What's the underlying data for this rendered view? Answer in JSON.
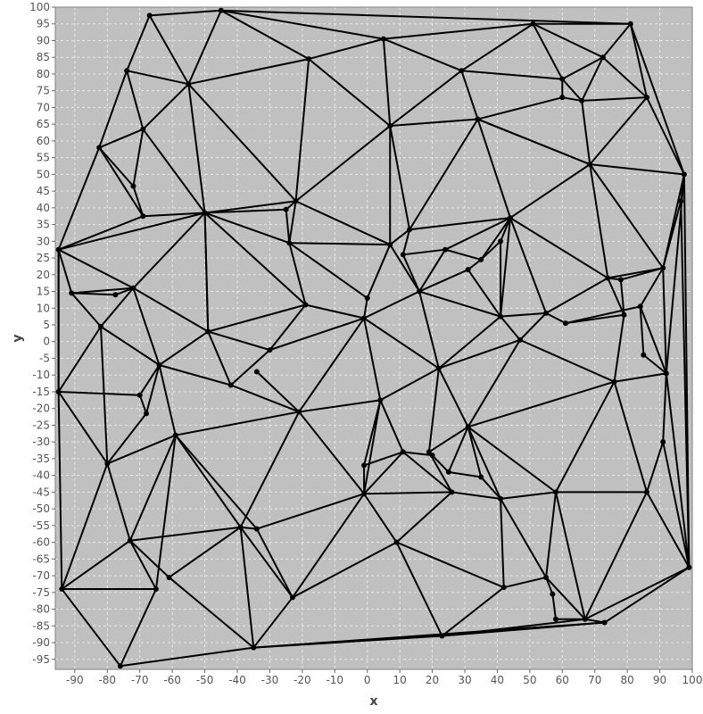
{
  "chart_data": {
    "type": "network",
    "xlabel": "x",
    "ylabel": "y",
    "xlim": [
      -96,
      100
    ],
    "ylim": [
      -98,
      100
    ],
    "x_ticks": [
      -90,
      -80,
      -70,
      -60,
      -50,
      -40,
      -30,
      -20,
      -10,
      0,
      10,
      20,
      30,
      40,
      50,
      60,
      70,
      80,
      90,
      100
    ],
    "y_ticks": [
      100,
      95,
      90,
      85,
      80,
      75,
      70,
      65,
      60,
      55,
      50,
      45,
      40,
      35,
      30,
      25,
      20,
      15,
      10,
      5,
      0,
      -5,
      -10,
      -15,
      -20,
      -25,
      -30,
      -35,
      -40,
      -45,
      -50,
      -55,
      -60,
      -65,
      -70,
      -75,
      -80,
      -85,
      -90,
      -95
    ],
    "grid": true,
    "colors": {
      "plot_background": "#c0c0c0",
      "gridline": "#e8e8e8",
      "edge": "#000000",
      "node": "#000000"
    },
    "nodes": [
      [
        -67,
        97.5
      ],
      [
        -45,
        99
      ],
      [
        5,
        90.5
      ],
      [
        51,
        95
      ],
      [
        81,
        95
      ],
      [
        -74,
        81
      ],
      [
        -55,
        77
      ],
      [
        -18,
        84.5
      ],
      [
        29,
        81
      ],
      [
        72.5,
        85
      ],
      [
        60,
        78.5
      ],
      [
        60,
        73
      ],
      [
        66,
        72
      ],
      [
        86,
        73
      ],
      [
        -69,
        63.5
      ],
      [
        -82.5,
        58
      ],
      [
        7,
        64.5
      ],
      [
        34,
        66.5
      ],
      [
        -72,
        46.5
      ],
      [
        68.5,
        53
      ],
      [
        97.5,
        50
      ],
      [
        -69,
        37.5
      ],
      [
        -50,
        38.5
      ],
      [
        -22,
        42
      ],
      [
        -25,
        39.5
      ],
      [
        44,
        37
      ],
      [
        96.5,
        42
      ],
      [
        -95,
        27.5
      ],
      [
        -24,
        29.5
      ],
      [
        7,
        29
      ],
      [
        13,
        33.5
      ],
      [
        11,
        26
      ],
      [
        24,
        27.5
      ],
      [
        41,
        30
      ],
      [
        35,
        24.5
      ],
      [
        31,
        21.5
      ],
      [
        91,
        22
      ],
      [
        74,
        19
      ],
      [
        78,
        18.5
      ],
      [
        -91,
        14.5
      ],
      [
        -72,
        16
      ],
      [
        -77.5,
        14
      ],
      [
        16,
        15
      ],
      [
        -19,
        11
      ],
      [
        0,
        13
      ],
      [
        -82,
        4.5
      ],
      [
        -49,
        3
      ],
      [
        -1,
        7
      ],
      [
        41,
        7.5
      ],
      [
        55,
        8.5
      ],
      [
        84,
        10.5
      ],
      [
        61,
        5.5
      ],
      [
        79,
        8
      ],
      [
        47,
        0.5
      ],
      [
        -30,
        -2.5
      ],
      [
        85,
        -4
      ],
      [
        -34,
        -9
      ],
      [
        -64,
        -7
      ],
      [
        22,
        -8
      ],
      [
        92,
        -9.5
      ],
      [
        -42,
        -13
      ],
      [
        -95,
        -15
      ],
      [
        -70,
        -16
      ],
      [
        76,
        -12
      ],
      [
        4,
        -17.5
      ],
      [
        -21,
        -21
      ],
      [
        -68,
        -21.5
      ],
      [
        -59,
        -28
      ],
      [
        31,
        -25.5
      ],
      [
        91,
        -30
      ],
      [
        -80,
        -36.5
      ],
      [
        11,
        -33
      ],
      [
        19,
        -33
      ],
      [
        20,
        -34
      ],
      [
        -1,
        -37
      ],
      [
        25,
        -39
      ],
      [
        35,
        -40.5
      ],
      [
        -1,
        -45.5
      ],
      [
        26,
        -45
      ],
      [
        58,
        -45
      ],
      [
        86,
        -45
      ],
      [
        41,
        -47
      ],
      [
        -39,
        -55.5
      ],
      [
        -34,
        -56
      ],
      [
        -73,
        -59.5
      ],
      [
        9,
        -60
      ],
      [
        99,
        -67.5
      ],
      [
        -61,
        -70.5
      ],
      [
        -94,
        -74
      ],
      [
        -65,
        -74
      ],
      [
        42,
        -73.5
      ],
      [
        55,
        -70.5
      ],
      [
        -23,
        -76.5
      ],
      [
        57,
        -75.5
      ],
      [
        58,
        -83
      ],
      [
        67,
        -83
      ],
      [
        73,
        -84
      ],
      [
        -35,
        -91.5
      ],
      [
        23,
        -88
      ],
      [
        -76,
        -97
      ]
    ],
    "edges": [
      [
        0,
        1
      ],
      [
        1,
        4
      ],
      [
        4,
        3
      ],
      [
        3,
        2
      ],
      [
        1,
        2
      ],
      [
        2,
        7
      ],
      [
        1,
        7
      ],
      [
        1,
        6
      ],
      [
        0,
        6
      ],
      [
        0,
        5
      ],
      [
        5,
        6
      ],
      [
        6,
        7
      ],
      [
        7,
        16
      ],
      [
        2,
        16
      ],
      [
        2,
        8
      ],
      [
        3,
        8
      ],
      [
        8,
        16
      ],
      [
        8,
        17
      ],
      [
        16,
        17
      ],
      [
        8,
        10
      ],
      [
        3,
        10
      ],
      [
        3,
        9
      ],
      [
        9,
        4
      ],
      [
        9,
        10
      ],
      [
        9,
        12
      ],
      [
        10,
        12
      ],
      [
        10,
        11
      ],
      [
        11,
        12
      ],
      [
        12,
        13
      ],
      [
        9,
        13
      ],
      [
        4,
        13
      ],
      [
        4,
        20
      ],
      [
        13,
        19
      ],
      [
        13,
        20
      ],
      [
        12,
        19
      ],
      [
        11,
        17
      ],
      [
        17,
        19
      ],
      [
        19,
        20
      ],
      [
        5,
        15
      ],
      [
        5,
        14
      ],
      [
        6,
        14
      ],
      [
        14,
        15
      ],
      [
        14,
        18
      ],
      [
        14,
        22
      ],
      [
        6,
        22
      ],
      [
        15,
        18
      ],
      [
        15,
        21
      ],
      [
        15,
        27
      ],
      [
        18,
        21
      ],
      [
        21,
        22
      ],
      [
        22,
        23
      ],
      [
        6,
        23
      ],
      [
        7,
        23
      ],
      [
        16,
        23
      ],
      [
        23,
        24
      ],
      [
        22,
        24
      ],
      [
        24,
        28
      ],
      [
        22,
        28
      ],
      [
        23,
        28
      ],
      [
        16,
        29
      ],
      [
        23,
        29
      ],
      [
        28,
        29
      ],
      [
        16,
        30
      ],
      [
        17,
        30
      ],
      [
        17,
        25
      ],
      [
        17,
        19
      ],
      [
        19,
        25
      ],
      [
        19,
        37
      ],
      [
        19,
        36
      ],
      [
        20,
        36
      ],
      [
        20,
        26
      ],
      [
        20,
        86
      ],
      [
        20,
        59
      ],
      [
        26,
        86
      ],
      [
        26,
        36
      ],
      [
        27,
        21
      ],
      [
        27,
        22
      ],
      [
        27,
        39
      ],
      [
        27,
        40
      ],
      [
        27,
        61
      ],
      [
        39,
        40
      ],
      [
        39,
        41
      ],
      [
        41,
        40
      ],
      [
        39,
        45
      ],
      [
        40,
        45
      ],
      [
        40,
        22
      ],
      [
        40,
        46
      ],
      [
        22,
        46
      ],
      [
        40,
        57
      ],
      [
        45,
        57
      ],
      [
        45,
        61
      ],
      [
        45,
        70
      ],
      [
        61,
        62
      ],
      [
        61,
        88
      ],
      [
        62,
        57
      ],
      [
        62,
        66
      ],
      [
        66,
        57
      ],
      [
        66,
        70
      ],
      [
        57,
        67
      ],
      [
        57,
        46
      ],
      [
        57,
        60
      ],
      [
        46,
        60
      ],
      [
        46,
        43
      ],
      [
        46,
        54
      ],
      [
        22,
        43
      ],
      [
        43,
        28
      ],
      [
        43,
        47
      ],
      [
        43,
        54
      ],
      [
        28,
        44
      ],
      [
        44,
        29
      ],
      [
        44,
        47
      ],
      [
        29,
        42
      ],
      [
        29,
        30
      ],
      [
        30,
        25
      ],
      [
        30,
        31
      ],
      [
        31,
        42
      ],
      [
        31,
        32
      ],
      [
        32,
        42
      ],
      [
        32,
        25
      ],
      [
        32,
        34
      ],
      [
        34,
        25
      ],
      [
        34,
        35
      ],
      [
        35,
        42
      ],
      [
        34,
        33
      ],
      [
        33,
        25
      ],
      [
        33,
        48
      ],
      [
        35,
        48
      ],
      [
        25,
        48
      ],
      [
        25,
        49
      ],
      [
        25,
        37
      ],
      [
        42,
        48
      ],
      [
        42,
        47
      ],
      [
        42,
        58
      ],
      [
        48,
        49
      ],
      [
        48,
        58
      ],
      [
        48,
        53
      ],
      [
        49,
        53
      ],
      [
        49,
        37
      ],
      [
        49,
        51
      ],
      [
        51,
        52
      ],
      [
        51,
        50
      ],
      [
        52,
        37
      ],
      [
        52,
        38
      ],
      [
        37,
        38
      ],
      [
        37,
        36
      ],
      [
        38,
        36
      ],
      [
        52,
        63
      ],
      [
        50,
        36
      ],
      [
        50,
        55
      ],
      [
        50,
        59
      ],
      [
        36,
        59
      ],
      [
        55,
        59
      ],
      [
        59,
        63
      ],
      [
        59,
        69
      ],
      [
        59,
        86
      ],
      [
        63,
        53
      ],
      [
        63,
        68
      ],
      [
        63,
        79
      ],
      [
        63,
        80
      ],
      [
        53,
        58
      ],
      [
        53,
        68
      ],
      [
        58,
        47
      ],
      [
        58,
        64
      ],
      [
        58,
        72
      ],
      [
        58,
        68
      ],
      [
        47,
        64
      ],
      [
        47,
        65
      ],
      [
        47,
        54
      ],
      [
        54,
        60
      ],
      [
        60,
        65
      ],
      [
        56,
        65
      ],
      [
        65,
        64
      ],
      [
        65,
        67
      ],
      [
        65,
        82
      ],
      [
        65,
        77
      ],
      [
        64,
        74
      ],
      [
        64,
        71
      ],
      [
        74,
        71
      ],
      [
        71,
        73
      ],
      [
        73,
        72
      ],
      [
        72,
        68
      ],
      [
        73,
        75
      ],
      [
        75,
        68
      ],
      [
        75,
        76
      ],
      [
        76,
        68
      ],
      [
        71,
        78
      ],
      [
        72,
        78
      ],
      [
        77,
        71
      ],
      [
        77,
        74
      ],
      [
        77,
        78
      ],
      [
        77,
        85
      ],
      [
        77,
        83
      ],
      [
        77,
        92
      ],
      [
        68,
        81
      ],
      [
        68,
        79
      ],
      [
        76,
        81
      ],
      [
        78,
        81
      ],
      [
        78,
        85
      ],
      [
        81,
        79
      ],
      [
        81,
        90
      ],
      [
        85,
        90
      ],
      [
        79,
        91
      ],
      [
        79,
        80
      ],
      [
        79,
        95
      ],
      [
        80,
        86
      ],
      [
        80,
        95
      ],
      [
        69,
        80
      ],
      [
        69,
        86
      ],
      [
        86,
        96
      ],
      [
        86,
        95
      ],
      [
        91,
        93
      ],
      [
        93,
        94
      ],
      [
        94,
        95
      ],
      [
        91,
        90
      ],
      [
        91,
        95
      ],
      [
        90,
        98
      ],
      [
        85,
        98
      ],
      [
        85,
        92
      ],
      [
        98,
        95
      ],
      [
        98,
        96
      ],
      [
        98,
        97
      ],
      [
        97,
        92
      ],
      [
        97,
        82
      ],
      [
        82,
        92
      ],
      [
        82,
        83
      ],
      [
        83,
        92
      ],
      [
        82,
        84
      ],
      [
        82,
        67
      ],
      [
        82,
        87
      ],
      [
        67,
        70
      ],
      [
        67,
        84
      ],
      [
        67,
        89
      ],
      [
        70,
        84
      ],
      [
        70,
        88
      ],
      [
        88,
        84
      ],
      [
        88,
        89
      ],
      [
        84,
        87
      ],
      [
        84,
        89
      ],
      [
        87,
        97
      ],
      [
        89,
        99
      ],
      [
        88,
        99
      ],
      [
        99,
        97
      ],
      [
        96,
        97
      ],
      [
        61,
        70
      ],
      [
        61,
        27
      ],
      [
        46,
        22
      ],
      [
        67,
        83
      ],
      [
        64,
        77
      ],
      [
        91,
        81
      ],
      [
        96,
        95
      ]
    ]
  }
}
